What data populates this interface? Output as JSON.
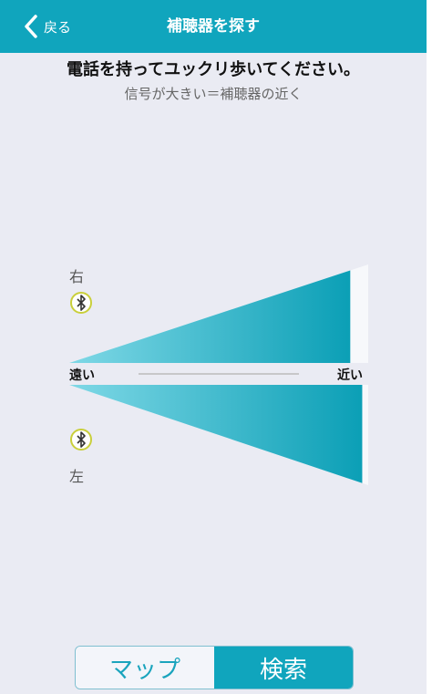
{
  "nav": {
    "back_label": "戻る",
    "title": "補聴器を探す"
  },
  "instruction": "電話を持ってユックリ歩いてください。",
  "hint": "信号が大きい＝補聴器の近く",
  "right_ear": {
    "label": "右",
    "icon": "bluetooth-icon",
    "signal_level": 0.94
  },
  "left_ear": {
    "label": "左",
    "icon": "bluetooth-icon",
    "signal_level": 0.98
  },
  "scale": {
    "far_label": "遠い",
    "near_label": "近い"
  },
  "segmented": {
    "map_label": "マップ",
    "search_label": "検索",
    "selected": "検索"
  },
  "colors": {
    "accent": "#10a5bd",
    "signal_light": "#7fd8e6",
    "signal_dark": "#0b9fb6",
    "background": "#eaebf3"
  }
}
